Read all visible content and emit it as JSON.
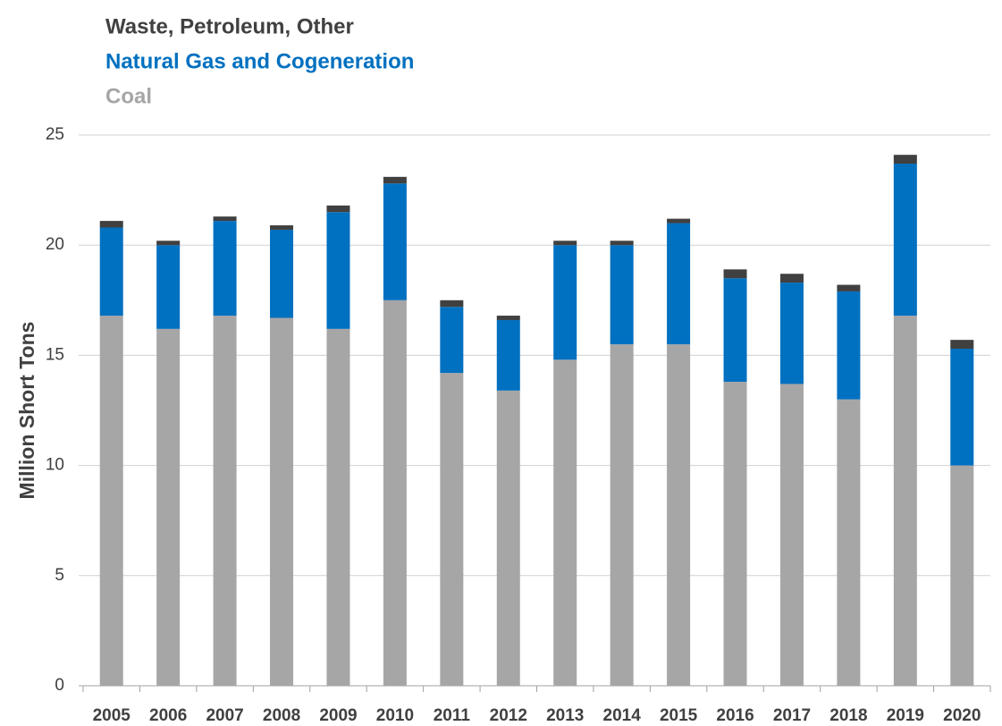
{
  "chart_data": {
    "type": "stacked_bar",
    "y_label": "Million Short Tons",
    "categories": [
      "2005",
      "2006",
      "2007",
      "2008",
      "2009",
      "2010",
      "2011",
      "2012",
      "2013",
      "2014",
      "2015",
      "2016",
      "2017",
      "2018",
      "2019",
      "2020"
    ],
    "series": [
      {
        "name": "Coal",
        "color": "#a6a6a6",
        "values": [
          16.8,
          16.2,
          16.8,
          16.7,
          16.2,
          17.5,
          14.2,
          13.4,
          14.8,
          15.5,
          15.5,
          13.8,
          13.7,
          13.0,
          16.8,
          10.0
        ]
      },
      {
        "name": "Natural Gas and Cogeneration",
        "color": "#0070c0",
        "values": [
          4.0,
          3.8,
          4.3,
          4.0,
          5.3,
          5.3,
          3.0,
          3.2,
          5.2,
          4.5,
          5.5,
          4.7,
          4.6,
          4.9,
          6.9,
          5.3
        ]
      },
      {
        "name": "Waste, Petroleum, Other",
        "color": "#404040",
        "values": [
          0.3,
          0.2,
          0.2,
          0.2,
          0.3,
          0.3,
          0.3,
          0.2,
          0.2,
          0.2,
          0.2,
          0.4,
          0.4,
          0.3,
          0.4,
          0.4
        ]
      }
    ],
    "ylim": [
      0,
      25
    ],
    "yticks": [
      0,
      5,
      10,
      15,
      20,
      25
    ],
    "grid": true,
    "legend": "top-left"
  }
}
